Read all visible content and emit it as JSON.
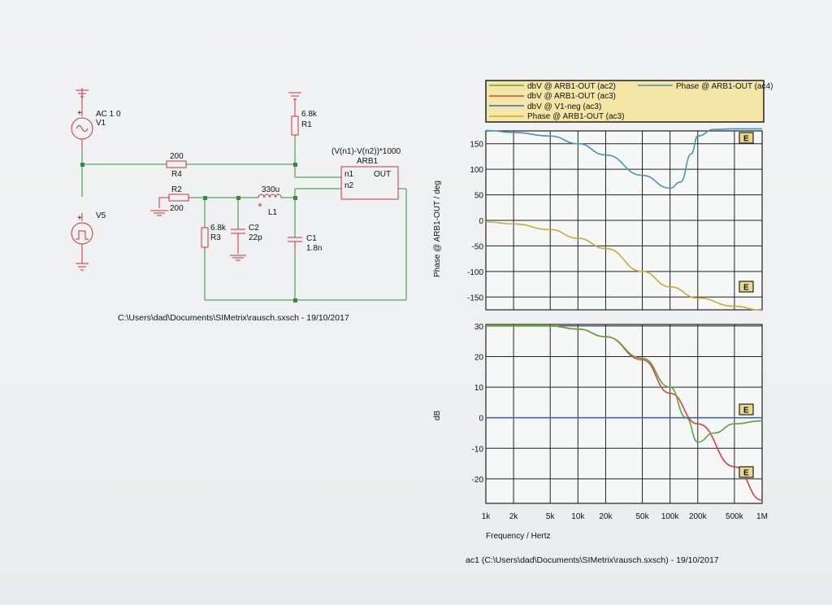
{
  "schematic": {
    "components": {
      "ac_source": {
        "value": "AC 1 0",
        "ref": "V1"
      },
      "pulse_source": {
        "ref": "V5"
      },
      "r1": {
        "value": "6.8k",
        "ref": "R1"
      },
      "r4": {
        "value": "200",
        "ref": "R4"
      },
      "r2": {
        "ref": "R2",
        "value": "200"
      },
      "r3": {
        "value": "6.8k",
        "ref": "R3"
      },
      "c2": {
        "ref": "C2",
        "value": "22p"
      },
      "l1": {
        "value": "330u",
        "ref": "L1"
      },
      "c1": {
        "ref": "C1",
        "value": "1.8n"
      },
      "arb1": {
        "expr": "(V(n1)-V(n2))*1000",
        "ref": "ARB1",
        "pin1": "n1",
        "pin2": "n2",
        "out": "OUT"
      }
    },
    "file_caption": "C:\\Users\\dad\\Documents\\SIMetrix\\rausch.sxsch - 19/10/2017"
  },
  "plot": {
    "legend": [
      {
        "label": "dbV @ ARB1-OUT (ac2)",
        "color": "#5aa83a"
      },
      {
        "label": "dbV @ ARB1-OUT (ac3)",
        "color": "#d94040"
      },
      {
        "label": "dbV @ V1-neg (ac3)",
        "color": "#3868c8"
      },
      {
        "label": "Phase @ ARB1-OUT (ac3)",
        "color": "#c8aa38"
      },
      {
        "label": "Phase @ ARB1-OUT (ac4)",
        "color": "#4a94b4"
      }
    ],
    "marker_label": "E",
    "caption": "ac1 (C:\\Users\\dad\\Documents\\SIMetrix\\rausch.sxsch) - 19/10/2017"
  },
  "chart_data": [
    {
      "type": "line",
      "ylabel": "Phase @ ARB1-OUT / deg",
      "xscale": "log",
      "xlim": [
        1000,
        1000000
      ],
      "ylim": [
        -175,
        175
      ],
      "yticks": [
        150,
        100,
        50,
        0,
        -50,
        -100,
        -150
      ],
      "grid": true,
      "series": [
        {
          "name": "Phase @ ARB1-OUT (ac4)",
          "color": "#4a94b4",
          "x": [
            1000,
            2000,
            5000,
            10000,
            20000,
            50000,
            100000,
            130000,
            170000,
            200000,
            300000,
            500000,
            1000000
          ],
          "y": [
            176,
            172,
            165,
            150,
            128,
            88,
            63,
            75,
            130,
            165,
            178,
            179,
            179
          ]
        },
        {
          "name": "Phase @ ARB1-OUT (ac3)",
          "color": "#c8aa38",
          "x": [
            1000,
            2000,
            5000,
            10000,
            20000,
            50000,
            100000,
            200000,
            500000,
            1000000
          ],
          "y": [
            -3,
            -7,
            -18,
            -35,
            -55,
            -100,
            -130,
            -152,
            -168,
            -176
          ]
        }
      ]
    },
    {
      "type": "line",
      "ylabel": "dB",
      "xlabel": "Frequency / Hertz",
      "xscale": "log",
      "xlim": [
        1000,
        1000000
      ],
      "xticks": [
        {
          "v": 1000,
          "label": "1k"
        },
        {
          "v": 2000,
          "label": "2k"
        },
        {
          "v": 5000,
          "label": "5k"
        },
        {
          "v": 10000,
          "label": "10k"
        },
        {
          "v": 20000,
          "label": "20k"
        },
        {
          "v": 50000,
          "label": "50k"
        },
        {
          "v": 100000,
          "label": "100k"
        },
        {
          "v": 200000,
          "label": "200k"
        },
        {
          "v": 500000,
          "label": "500k"
        },
        {
          "v": 1000000,
          "label": "1M"
        }
      ],
      "ylim": [
        -28,
        30.5
      ],
      "yticks": [
        30,
        20,
        10,
        0,
        -10,
        -20
      ],
      "grid": true,
      "series": [
        {
          "name": "dbV @ ARB1-OUT (ac3)",
          "color": "#d94040",
          "x": [
            1000,
            2000,
            5000,
            10000,
            20000,
            50000,
            100000,
            200000,
            500000,
            1000000
          ],
          "y": [
            30,
            30,
            30,
            29,
            26.5,
            19,
            8,
            -2,
            -16,
            -27
          ]
        },
        {
          "name": "dbV @ ARB1-OUT (ac2)",
          "color": "#5aa83a",
          "x": [
            1000,
            2000,
            5000,
            10000,
            20000,
            50000,
            100000,
            150000,
            200000,
            300000,
            500000,
            1000000
          ],
          "y": [
            30,
            30,
            30,
            29,
            26.5,
            19.5,
            10,
            0,
            -8,
            -5,
            -2,
            -1
          ]
        },
        {
          "name": "dbV @ V1-neg (ac3)",
          "color": "#3868c8",
          "x": [
            1000,
            1000000
          ],
          "y": [
            0,
            0
          ]
        }
      ]
    }
  ]
}
